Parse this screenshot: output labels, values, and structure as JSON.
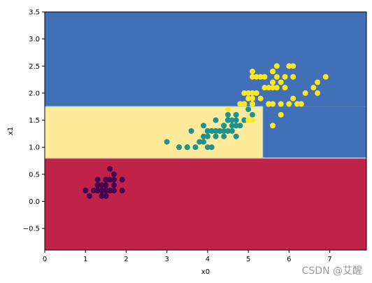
{
  "chart_data": {
    "type": "scatter",
    "title": "",
    "xlabel": "x0",
    "ylabel": "x1",
    "xlim": [
      0,
      7.9
    ],
    "ylim": [
      -0.9,
      3.5
    ],
    "grid": false,
    "x_ticks": [
      0,
      1,
      2,
      3,
      4,
      5,
      6,
      7
    ],
    "y_ticks": [
      -0.5,
      0.0,
      0.5,
      1.0,
      1.5,
      2.0,
      2.5,
      3.0,
      3.5
    ],
    "x_tick_labels": [
      "0",
      "1",
      "2",
      "3",
      "4",
      "5",
      "6",
      "7"
    ],
    "y_tick_labels": [
      "−0.5",
      "0.0",
      "0.5",
      "1.0",
      "1.5",
      "2.0",
      "2.5",
      "3.0",
      "3.5"
    ],
    "decision_regions": [
      {
        "class": 0,
        "color": "#c0234a",
        "x0_range": [
          0,
          7.9
        ],
        "x1_range": [
          -0.9,
          0.8
        ]
      },
      {
        "class": 1,
        "color": "#fdea9b",
        "x0_range": [
          0,
          5.35
        ],
        "x1_range": [
          0.8,
          1.75
        ]
      },
      {
        "class": 2,
        "color": "#4170b6",
        "x0_range": [
          5.35,
          7.9
        ],
        "x1_range": [
          0.8,
          1.75
        ]
      },
      {
        "class": 2,
        "color": "#4170b6",
        "x0_range": [
          0,
          7.9
        ],
        "x1_range": [
          1.75,
          3.5
        ]
      }
    ],
    "class_colors": [
      "#440154",
      "#21918c",
      "#fde725"
    ],
    "series": [
      {
        "class": 0,
        "points": [
          [
            1.4,
            0.2
          ],
          [
            1.3,
            0.2
          ],
          [
            1.5,
            0.2
          ],
          [
            1.4,
            0.2
          ],
          [
            1.7,
            0.4
          ],
          [
            1.4,
            0.3
          ],
          [
            1.5,
            0.2
          ],
          [
            1.4,
            0.2
          ],
          [
            1.5,
            0.1
          ],
          [
            1.5,
            0.2
          ],
          [
            1.6,
            0.2
          ],
          [
            1.4,
            0.1
          ],
          [
            1.1,
            0.1
          ],
          [
            1.2,
            0.2
          ],
          [
            1.5,
            0.4
          ],
          [
            1.3,
            0.4
          ],
          [
            1.4,
            0.3
          ],
          [
            1.7,
            0.3
          ],
          [
            1.5,
            0.3
          ],
          [
            1.7,
            0.2
          ],
          [
            1.5,
            0.4
          ],
          [
            1.0,
            0.2
          ],
          [
            1.7,
            0.5
          ],
          [
            1.9,
            0.2
          ],
          [
            1.6,
            0.2
          ],
          [
            1.6,
            0.4
          ],
          [
            1.5,
            0.2
          ],
          [
            1.4,
            0.2
          ],
          [
            1.6,
            0.2
          ],
          [
            1.6,
            0.2
          ],
          [
            1.5,
            0.4
          ],
          [
            1.5,
            0.1
          ],
          [
            1.4,
            0.2
          ],
          [
            1.5,
            0.1
          ],
          [
            1.2,
            0.2
          ],
          [
            1.3,
            0.2
          ],
          [
            1.4,
            0.1
          ],
          [
            1.3,
            0.2
          ],
          [
            1.5,
            0.2
          ],
          [
            1.3,
            0.3
          ],
          [
            1.3,
            0.3
          ],
          [
            1.3,
            0.2
          ],
          [
            1.6,
            0.6
          ],
          [
            1.9,
            0.4
          ],
          [
            1.4,
            0.3
          ],
          [
            1.6,
            0.2
          ],
          [
            1.4,
            0.2
          ],
          [
            1.5,
            0.2
          ],
          [
            1.4,
            0.2
          ]
        ]
      },
      {
        "class": 1,
        "points": [
          [
            4.7,
            1.4
          ],
          [
            4.5,
            1.5
          ],
          [
            4.9,
            1.5
          ],
          [
            4.0,
            1.3
          ],
          [
            4.6,
            1.5
          ],
          [
            4.5,
            1.3
          ],
          [
            4.7,
            1.6
          ],
          [
            3.3,
            1.0
          ],
          [
            4.6,
            1.3
          ],
          [
            3.9,
            1.4
          ],
          [
            3.5,
            1.0
          ],
          [
            4.2,
            1.5
          ],
          [
            4.0,
            1.0
          ],
          [
            4.7,
            1.4
          ],
          [
            3.6,
            1.3
          ],
          [
            4.4,
            1.4
          ],
          [
            4.5,
            1.5
          ],
          [
            4.1,
            1.0
          ],
          [
            4.5,
            1.5
          ],
          [
            3.9,
            1.1
          ],
          [
            4.8,
            1.8
          ],
          [
            4.0,
            1.3
          ],
          [
            4.9,
            1.5
          ],
          [
            4.7,
            1.2
          ],
          [
            4.3,
            1.3
          ],
          [
            4.4,
            1.4
          ],
          [
            4.8,
            1.4
          ],
          [
            5.0,
            1.7
          ],
          [
            4.5,
            1.5
          ],
          [
            3.5,
            1.0
          ],
          [
            3.8,
            1.1
          ],
          [
            3.7,
            1.0
          ],
          [
            3.9,
            1.2
          ],
          [
            5.1,
            1.6
          ],
          [
            4.5,
            1.5
          ],
          [
            4.5,
            1.6
          ],
          [
            4.7,
            1.5
          ],
          [
            4.4,
            1.3
          ],
          [
            4.1,
            1.3
          ],
          [
            4.0,
            1.3
          ],
          [
            4.4,
            1.2
          ],
          [
            4.6,
            1.4
          ],
          [
            4.0,
            1.2
          ],
          [
            3.3,
            1.0
          ],
          [
            4.2,
            1.3
          ],
          [
            4.2,
            1.2
          ],
          [
            4.2,
            1.3
          ],
          [
            4.3,
            1.3
          ],
          [
            3.0,
            1.1
          ],
          [
            4.1,
            1.3
          ]
        ]
      },
      {
        "class": 2,
        "points": [
          [
            6.0,
            2.5
          ],
          [
            5.1,
            1.9
          ],
          [
            5.9,
            2.1
          ],
          [
            5.6,
            1.8
          ],
          [
            5.8,
            2.2
          ],
          [
            6.6,
            2.1
          ],
          [
            4.5,
            1.7
          ],
          [
            6.3,
            1.8
          ],
          [
            5.8,
            1.8
          ],
          [
            6.1,
            2.5
          ],
          [
            5.1,
            2.0
          ],
          [
            5.3,
            1.9
          ],
          [
            5.5,
            2.1
          ],
          [
            5.0,
            2.0
          ],
          [
            5.1,
            2.4
          ],
          [
            5.3,
            2.3
          ],
          [
            5.5,
            1.8
          ],
          [
            6.7,
            2.2
          ],
          [
            6.9,
            2.3
          ],
          [
            5.0,
            1.5
          ],
          [
            5.7,
            2.3
          ],
          [
            4.9,
            2.0
          ],
          [
            6.7,
            2.0
          ],
          [
            4.9,
            1.8
          ],
          [
            5.7,
            2.1
          ],
          [
            6.0,
            1.8
          ],
          [
            4.8,
            1.8
          ],
          [
            4.9,
            1.8
          ],
          [
            5.6,
            2.1
          ],
          [
            5.8,
            1.6
          ],
          [
            6.1,
            1.9
          ],
          [
            6.4,
            2.0
          ],
          [
            5.6,
            2.2
          ],
          [
            5.1,
            1.5
          ],
          [
            5.6,
            1.4
          ],
          [
            6.1,
            2.3
          ],
          [
            5.6,
            2.4
          ],
          [
            5.5,
            1.8
          ],
          [
            4.8,
            1.8
          ],
          [
            5.4,
            2.1
          ],
          [
            5.6,
            2.4
          ],
          [
            5.1,
            2.3
          ],
          [
            5.9,
            2.3
          ],
          [
            5.7,
            2.5
          ],
          [
            5.2,
            2.3
          ],
          [
            5.0,
            1.9
          ],
          [
            5.2,
            2.0
          ],
          [
            5.4,
            2.3
          ],
          [
            5.1,
            1.8
          ],
          [
            6.2,
            1.8
          ]
        ]
      }
    ]
  },
  "watermark": "CSDN @艾醒"
}
